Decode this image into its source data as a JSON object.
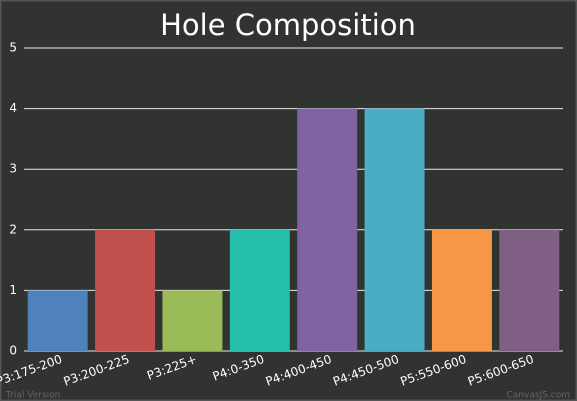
{
  "chart_data": {
    "type": "bar",
    "title": "Hole Composition",
    "categories": [
      "P3:175-200",
      "P3:200-225",
      "P3:225+",
      "P4:0-350",
      "P4:400-450",
      "P4:450-500",
      "P5:550-600",
      "P5:600-650"
    ],
    "values": [
      1,
      2,
      1,
      2,
      4,
      4,
      2,
      2
    ],
    "colors": [
      "#4f81bc",
      "#c0504e",
      "#9bbb58",
      "#23bfaa",
      "#8064a1",
      "#4aacc5",
      "#f79647",
      "#7f6084"
    ],
    "ylim": [
      0,
      5
    ],
    "yticks": [
      0,
      1,
      2,
      3,
      4,
      5
    ],
    "grid": true,
    "watermark": [
      "Trial Version",
      "CanvasJS.com"
    ]
  }
}
